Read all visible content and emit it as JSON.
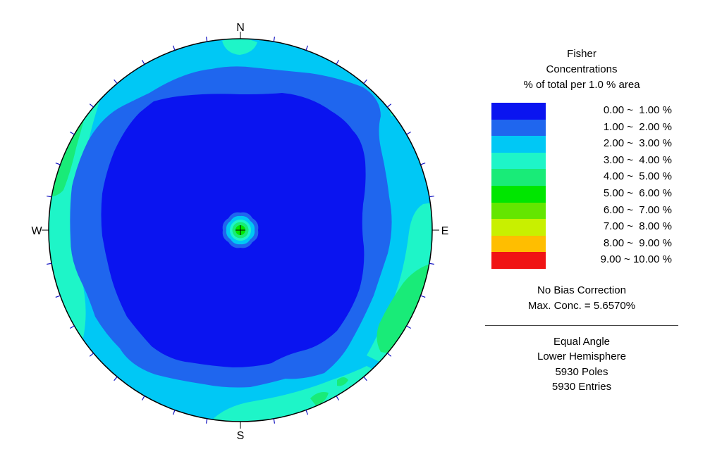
{
  "compass": {
    "n": "N",
    "s": "S",
    "e": "E",
    "w": "W"
  },
  "legend": {
    "title_lines": [
      "Fisher",
      "Concentrations",
      "% of total per 1.0 % area"
    ],
    "bins": [
      {
        "label": "0.00 ~  1.00 %",
        "color": "#0a14f0"
      },
      {
        "label": "1.00 ~  2.00 %",
        "color": "#1f66ee"
      },
      {
        "label": "2.00 ~  3.00 %",
        "color": "#00c8f5"
      },
      {
        "label": "3.00 ~  4.00 %",
        "color": "#1ef5c8"
      },
      {
        "label": "4.00 ~  5.00 %",
        "color": "#19eb78"
      },
      {
        "label": "5.00 ~  6.00 %",
        "color": "#00e600"
      },
      {
        "label": "6.00 ~  7.00 %",
        "color": "#64e600"
      },
      {
        "label": "7.00 ~  8.00 %",
        "color": "#c8f000"
      },
      {
        "label": "8.00 ~  9.00 %",
        "color": "#ffbe00"
      },
      {
        "label": "9.00 ~ 10.00 %",
        "color": "#f01414"
      }
    ],
    "note_lines": [
      "No Bias Correction",
      "Max. Conc. = 5.6570%"
    ],
    "info_lines": [
      "Equal Angle",
      "Lower Hemisphere",
      "5930 Poles",
      "5930 Entries"
    ]
  },
  "chart_data": {
    "type": "heatmap",
    "projection": "Equal Angle",
    "hemisphere": "Lower Hemisphere",
    "poles": 5930,
    "entries": 5930,
    "max_concentration_percent": 5.657,
    "bias_correction": "No Bias Correction",
    "contour_bins": [
      [
        0,
        1
      ],
      [
        1,
        2
      ],
      [
        2,
        3
      ],
      [
        3,
        4
      ],
      [
        4,
        5
      ],
      [
        5,
        6
      ],
      [
        6,
        7
      ],
      [
        7,
        8
      ],
      [
        8,
        9
      ],
      [
        9,
        10
      ]
    ],
    "regions": [
      {
        "description": "broad central low",
        "range_percent": [
          0,
          1
        ]
      },
      {
        "description": "ring around center",
        "range_percent": [
          1,
          2
        ]
      },
      {
        "description": "outer ring",
        "range_percent": [
          2,
          3
        ]
      },
      {
        "description": "rim patches W, E, S, NE",
        "range_percent": [
          3,
          4
        ]
      },
      {
        "description": "rim patches W, SE, S",
        "range_percent": [
          4,
          5
        ]
      },
      {
        "description": "small peak at center (vertical poles)",
        "range_percent": [
          5,
          6
        ]
      }
    ]
  }
}
